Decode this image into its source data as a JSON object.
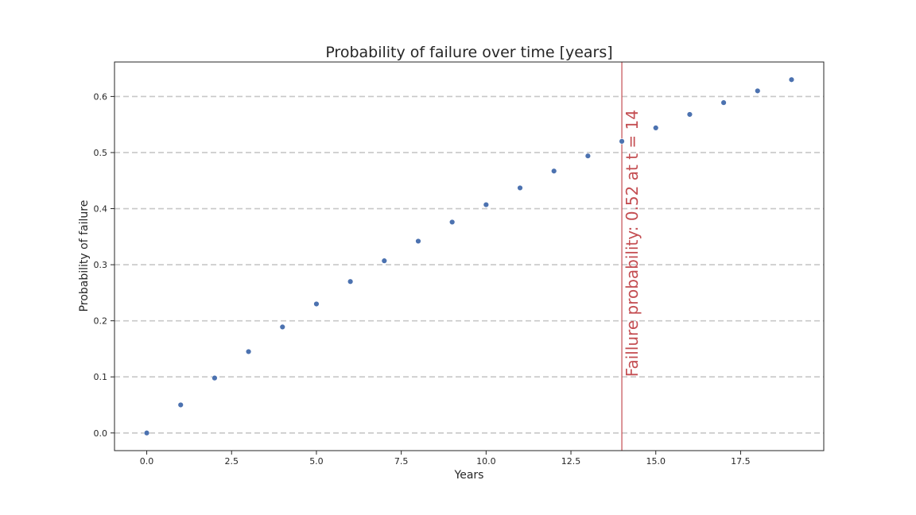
{
  "chart_data": {
    "type": "scatter",
    "title": "Probability of failure over time [years]",
    "xlabel": "Years",
    "ylabel": "Probability of  failure",
    "xlim": [
      -0.95,
      19.95
    ],
    "ylim": [
      -0.0315,
      0.6615
    ],
    "x_ticks": [
      0.0,
      2.5,
      5.0,
      7.5,
      10.0,
      12.5,
      15.0,
      17.5
    ],
    "x_tick_labels": [
      "0.0",
      "2.5",
      "5.0",
      "7.5",
      "10.0",
      "12.5",
      "15.0",
      "17.5"
    ],
    "y_ticks": [
      0.0,
      0.1,
      0.2,
      0.3,
      0.4,
      0.5,
      0.6
    ],
    "y_tick_labels": [
      "0.0",
      "0.1",
      "0.2",
      "0.3",
      "0.4",
      "0.5",
      "0.6"
    ],
    "grid": "horizontal dashed",
    "series": [
      {
        "x": [
          0,
          1,
          2,
          3,
          4,
          5,
          6,
          7,
          8,
          9,
          10,
          11,
          12,
          13,
          14,
          15,
          16,
          17,
          18,
          19
        ],
        "y": [
          0.0,
          0.05,
          0.098,
          0.145,
          0.189,
          0.23,
          0.27,
          0.307,
          0.342,
          0.376,
          0.407,
          0.437,
          0.467,
          0.494,
          0.52,
          0.544,
          0.568,
          0.589,
          0.61,
          0.63
        ],
        "color": "#4c72b0"
      }
    ],
    "vline": {
      "x": 14,
      "color": "#c44e52",
      "label": "Faillure probability: 0.52 at t = 14"
    }
  }
}
